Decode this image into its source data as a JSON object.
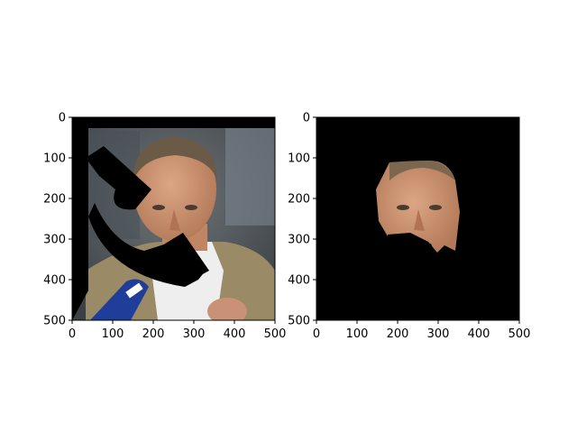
{
  "panels": [
    {
      "id": "left",
      "image_description_icon": "portrait-photo-with-occlusion",
      "xticks": [
        "0",
        "100",
        "200",
        "300",
        "400",
        "500"
      ],
      "yticks": [
        "0",
        "100",
        "200",
        "300",
        "400",
        "500"
      ]
    },
    {
      "id": "right",
      "image_description_icon": "segmented-face-mask",
      "xticks": [
        "0",
        "100",
        "200",
        "300",
        "400",
        "500"
      ],
      "yticks": [
        "0",
        "100",
        "200",
        "300",
        "400",
        "500"
      ]
    }
  ],
  "axis_range": {
    "x": [
      0,
      500
    ],
    "y": [
      0,
      500
    ]
  },
  "colors": {
    "background": "#ffffff",
    "mask": "#000000",
    "skin": "#c9916f",
    "suit": "#9a8a66",
    "shirt": "#eeeeee",
    "microphone": "#1f3e9a",
    "backdrop": "#5c6368"
  }
}
